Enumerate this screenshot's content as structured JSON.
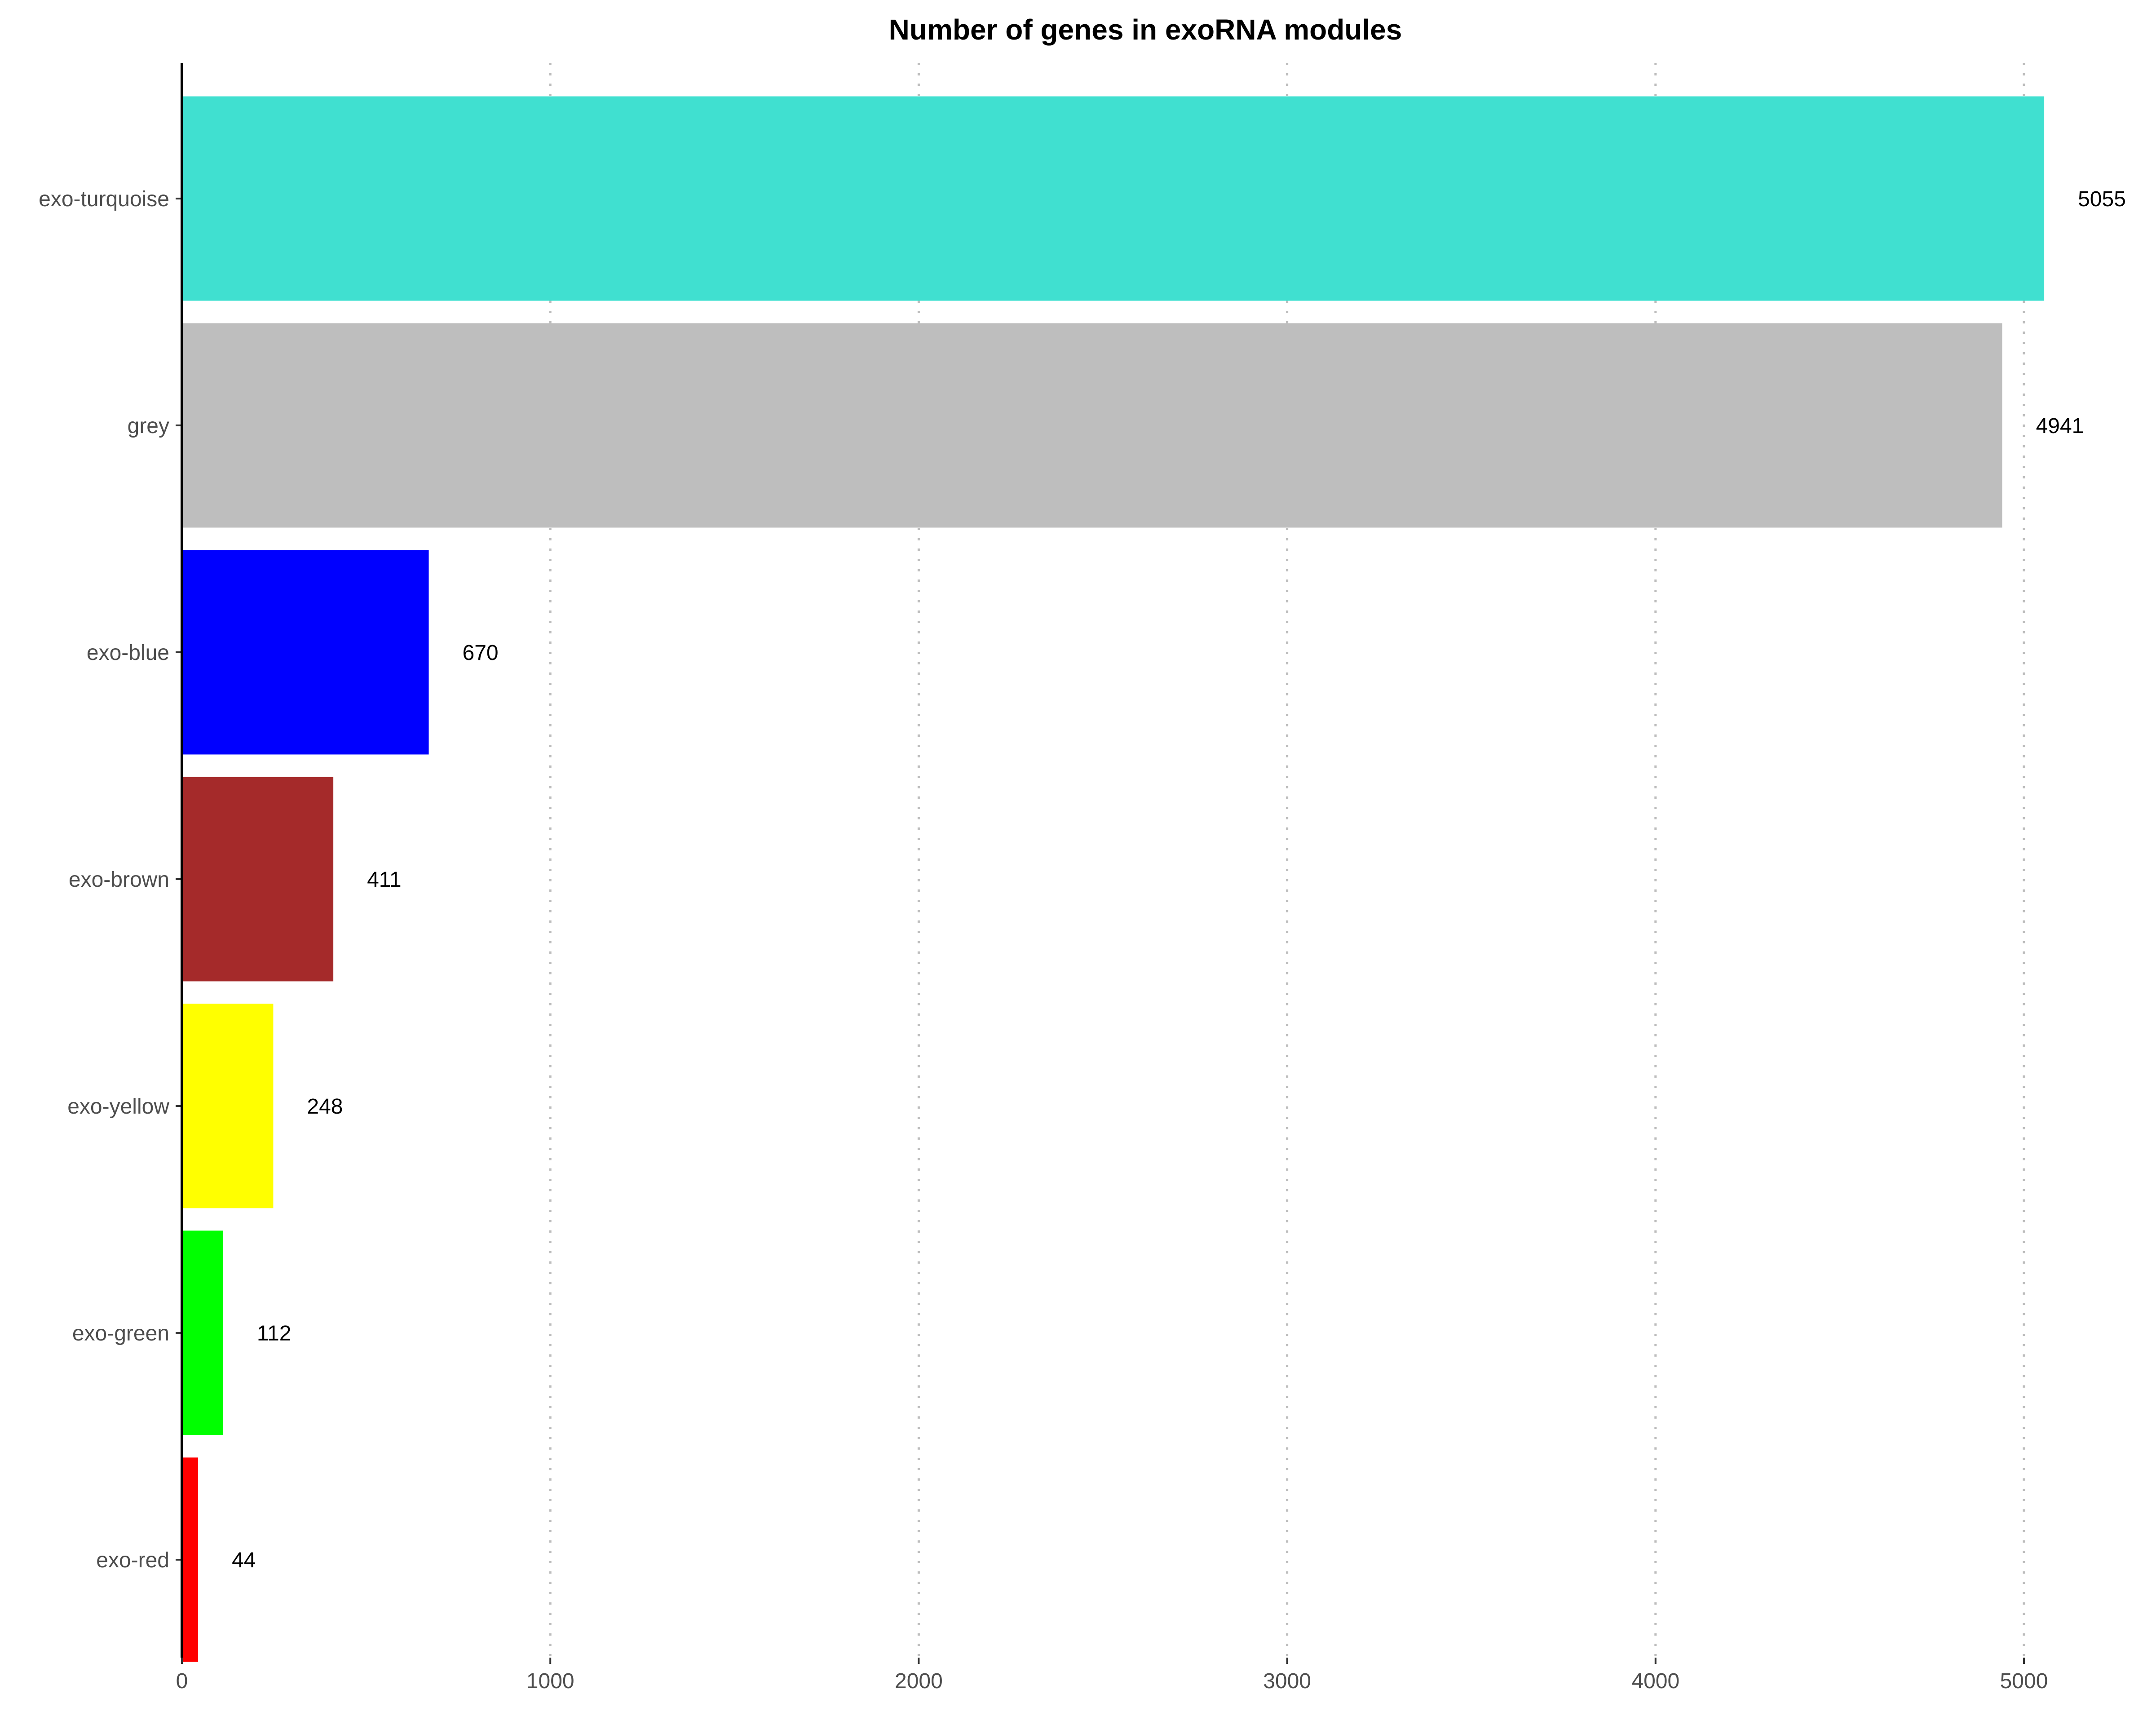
{
  "chart_data": {
    "type": "bar",
    "orientation": "horizontal",
    "title": "Number of genes in exoRNA modules",
    "xlabel": "",
    "ylabel": "",
    "categories": [
      "exo-turquoise",
      "grey",
      "exo-blue",
      "exo-brown",
      "exo-yellow",
      "exo-green",
      "exo-red"
    ],
    "values": [
      5055,
      4941,
      670,
      411,
      248,
      112,
      44
    ],
    "colors": [
      "#40E0D0",
      "#BEBEBE",
      "#0000FF",
      "#A52A2A",
      "#FFFF00",
      "#00FF00",
      "#FF0000"
    ],
    "xlim": [
      0,
      5300
    ],
    "xticks": [
      0,
      1000,
      2000,
      3000,
      4000,
      5000
    ],
    "grid": "vertical-dotted",
    "legend": "none"
  }
}
